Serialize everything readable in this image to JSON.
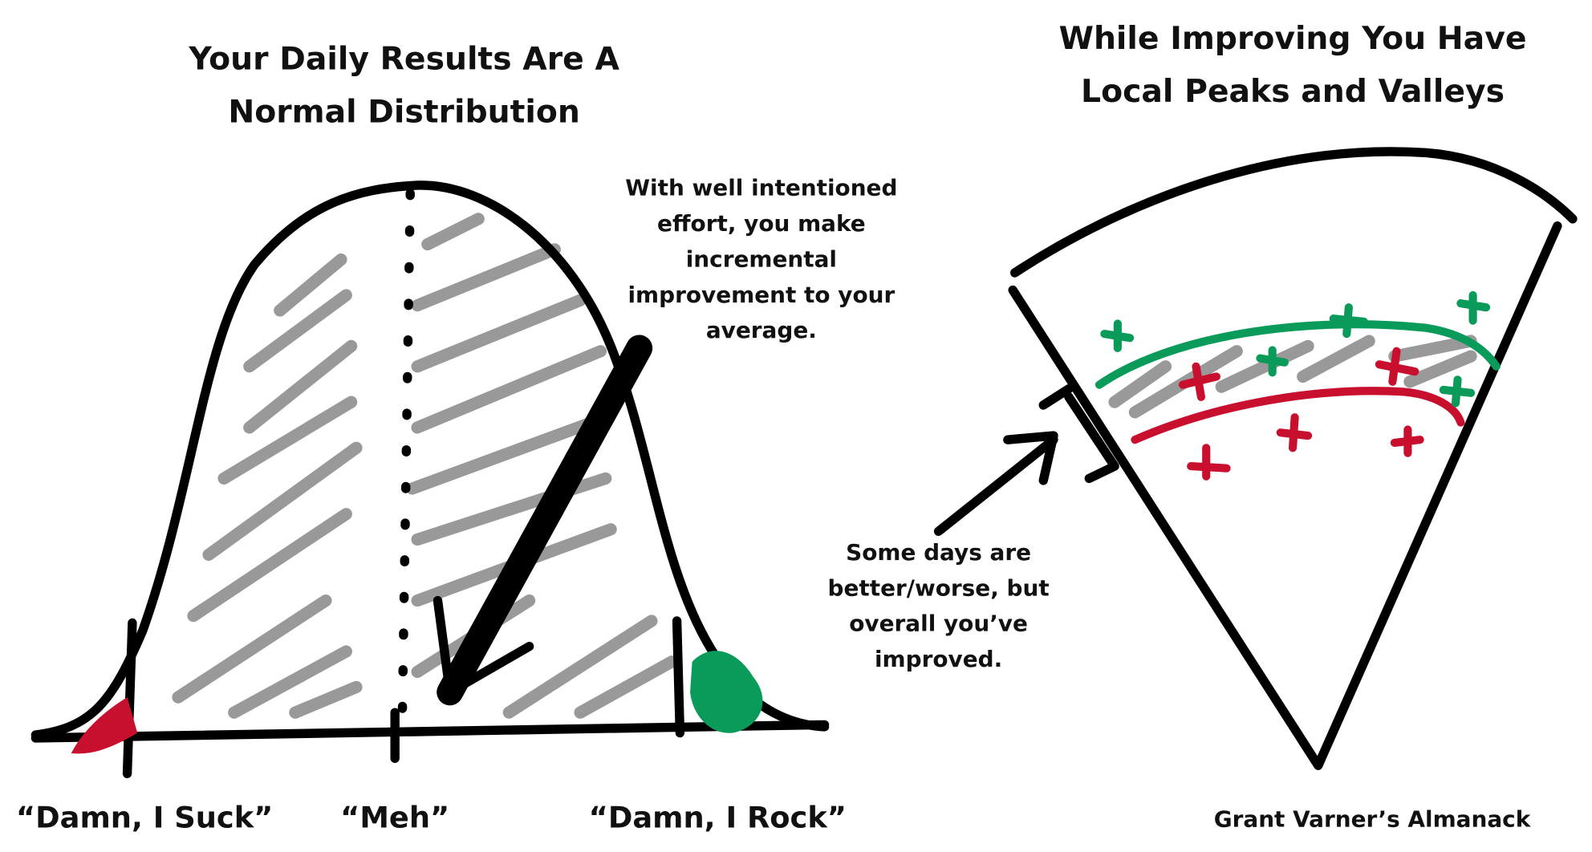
{
  "left": {
    "title": [
      "Your Daily Results Are A",
      "Normal Distribution"
    ],
    "annotation": [
      "With well intentioned",
      "effort, you make",
      "incremental",
      "improvement to your",
      "average."
    ],
    "labels": [
      "“Damn, I Suck”",
      "“Meh”",
      "“Damn, I Rock”"
    ]
  },
  "right": {
    "title": [
      "While Improving You Have",
      "Local Peaks and Valleys"
    ],
    "annotation": [
      "Some days are",
      "better/worse, but",
      "overall you’ve",
      "improved."
    ]
  },
  "credit": "Grant Varner’s Almanack"
}
